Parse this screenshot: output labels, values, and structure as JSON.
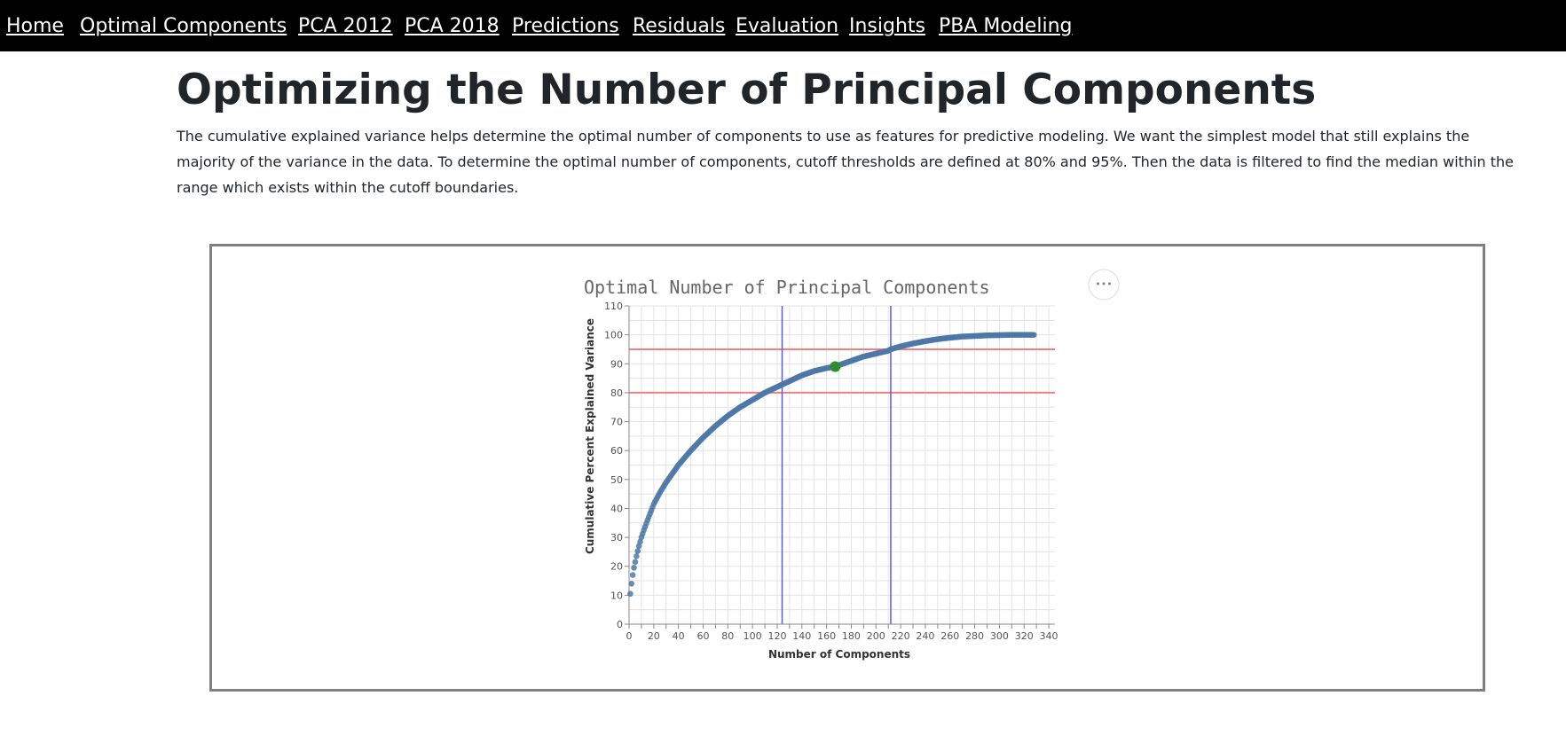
{
  "nav": {
    "items": [
      {
        "label": "Home"
      },
      {
        "label": "Optimal Components"
      },
      {
        "label": "PCA 2012"
      },
      {
        "label": "PCA 2018"
      },
      {
        "label": "Predictions"
      },
      {
        "label": "Residuals"
      },
      {
        "label": "Evaluation"
      },
      {
        "label": "Insights"
      },
      {
        "label": "PBA Modeling"
      }
    ]
  },
  "page": {
    "title": "Optimizing the Number of Principal Components",
    "description": "The cumulative explained variance helps determine the optimal number of components to use as features for predictive modeling. We want the simplest model that still explains the majority of the variance in the data. To determine the optimal number of components, cutoff thresholds are defined at 80% and 95%. Then the data is filtered to find the median within the range which exists within the cutoff boundaries."
  },
  "chart": {
    "actions_icon": "ellipsis-icon",
    "actions_label": "•••"
  },
  "colors": {
    "nav_background": "#000000",
    "nav_text": "#ffffff",
    "curve": "#4c78a8",
    "optimal_point": "#2e8b2e",
    "threshold_line": "#f08080",
    "cutoff_line": "#5a5ae6"
  },
  "chart_data": {
    "type": "scatter",
    "title": "Optimal Number of Principal Components",
    "xlabel": "Number of Components",
    "ylabel": "Cumulative Percent Explained Variance",
    "xlim": [
      0,
      345
    ],
    "ylim": [
      0,
      110
    ],
    "x_ticks": [
      0,
      20,
      40,
      60,
      80,
      100,
      120,
      140,
      160,
      180,
      200,
      220,
      240,
      260,
      280,
      300,
      320,
      340
    ],
    "y_ticks": [
      0,
      10,
      20,
      30,
      40,
      50,
      60,
      70,
      80,
      90,
      100,
      110
    ],
    "grid": true,
    "series": [
      {
        "x": [
          1,
          2,
          3,
          4,
          5,
          6,
          8,
          10,
          12,
          15,
          20,
          25,
          30,
          40,
          50,
          60,
          70,
          80,
          90,
          100,
          110,
          120,
          125,
          130,
          140,
          150,
          160,
          167,
          170,
          180,
          190,
          200,
          210,
          212,
          220,
          230,
          240,
          250,
          260,
          270,
          280,
          290,
          300,
          310,
          320,
          328
        ],
        "y": [
          10.5,
          14,
          17,
          19.5,
          21.5,
          23.5,
          27,
          30,
          32.5,
          36,
          41.5,
          45.5,
          49,
          55,
          60,
          64.5,
          68.5,
          72,
          75,
          77.5,
          80,
          82,
          83,
          84,
          86,
          87.5,
          88.5,
          89,
          89.5,
          91,
          92.5,
          93.5,
          94.5,
          95,
          96,
          97,
          97.8,
          98.5,
          99,
          99.4,
          99.6,
          99.8,
          99.9,
          100,
          100,
          100
        ]
      }
    ],
    "optimal_point": {
      "x": 167,
      "y": 89
    },
    "horizontal_thresholds": [
      80,
      95
    ],
    "vertical_cutoffs": [
      124,
      212
    ]
  }
}
